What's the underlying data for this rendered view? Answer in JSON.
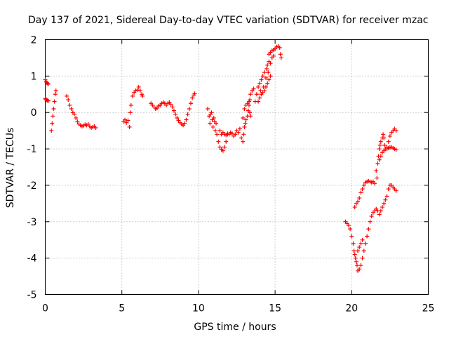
{
  "chart_data": {
    "type": "scatter",
    "title": "Day 137 of 2021, Sidereal Day-to-day VTEC variation (SDTVAR) for receiver mzac",
    "xlabel": "GPS time / hours",
    "ylabel": "SDTVAR / TECUs",
    "xlim": [
      0,
      25
    ],
    "ylim": [
      -5,
      2
    ],
    "xticks": [
      "0",
      "5",
      "10",
      "15",
      "20",
      "25"
    ],
    "yticks": [
      "2",
      "1",
      "0",
      "-1",
      "-2",
      "-3",
      "-4",
      "-5"
    ],
    "grid": true,
    "marker": "plus",
    "color": "#ff0000",
    "series": [
      {
        "points": [
          [
            0.0,
            0.9
          ],
          [
            0.05,
            0.85
          ],
          [
            0.1,
            0.82
          ],
          [
            0.15,
            0.8
          ],
          [
            0.2,
            0.78
          ],
          [
            0.0,
            0.38
          ],
          [
            0.05,
            0.36
          ],
          [
            0.1,
            0.34
          ],
          [
            0.15,
            0.33
          ],
          [
            0.2,
            0.32
          ],
          [
            0.4,
            -0.5
          ],
          [
            0.45,
            -0.3
          ],
          [
            0.5,
            -0.1
          ],
          [
            0.55,
            0.1
          ],
          [
            0.6,
            0.3
          ],
          [
            0.65,
            0.5
          ],
          [
            0.7,
            0.6
          ],
          [
            1.4,
            0.45
          ],
          [
            1.5,
            0.35
          ],
          [
            1.6,
            0.2
          ],
          [
            1.7,
            0.1
          ],
          [
            1.8,
            0.0
          ],
          [
            1.9,
            -0.05
          ],
          [
            2.0,
            -0.15
          ],
          [
            2.1,
            -0.25
          ],
          [
            2.2,
            -0.32
          ],
          [
            2.3,
            -0.35
          ],
          [
            2.4,
            -0.38
          ],
          [
            2.5,
            -0.36
          ],
          [
            2.6,
            -0.33
          ],
          [
            2.7,
            -0.35
          ],
          [
            2.8,
            -0.32
          ],
          [
            2.9,
            -0.38
          ],
          [
            3.0,
            -0.42
          ],
          [
            3.1,
            -0.4
          ],
          [
            3.2,
            -0.38
          ],
          [
            3.3,
            -0.42
          ],
          [
            5.1,
            -0.25
          ],
          [
            5.2,
            -0.2
          ],
          [
            5.3,
            -0.28
          ],
          [
            5.4,
            -0.22
          ],
          [
            5.5,
            -0.4
          ],
          [
            5.55,
            0.0
          ],
          [
            5.6,
            0.2
          ],
          [
            5.7,
            0.45
          ],
          [
            5.8,
            0.55
          ],
          [
            5.9,
            0.6
          ],
          [
            6.0,
            0.62
          ],
          [
            6.1,
            0.7
          ],
          [
            6.2,
            0.6
          ],
          [
            6.3,
            0.5
          ],
          [
            6.35,
            0.45
          ],
          [
            6.9,
            0.25
          ],
          [
            7.0,
            0.2
          ],
          [
            7.1,
            0.15
          ],
          [
            7.2,
            0.1
          ],
          [
            7.3,
            0.12
          ],
          [
            7.4,
            0.18
          ],
          [
            7.5,
            0.2
          ],
          [
            7.6,
            0.25
          ],
          [
            7.7,
            0.28
          ],
          [
            7.8,
            0.25
          ],
          [
            7.9,
            0.2
          ],
          [
            8.0,
            0.25
          ],
          [
            8.1,
            0.28
          ],
          [
            8.2,
            0.22
          ],
          [
            8.3,
            0.15
          ],
          [
            8.4,
            0.05
          ],
          [
            8.5,
            -0.05
          ],
          [
            8.6,
            -0.15
          ],
          [
            8.7,
            -0.22
          ],
          [
            8.8,
            -0.28
          ],
          [
            8.9,
            -0.32
          ],
          [
            9.0,
            -0.35
          ],
          [
            9.1,
            -0.3
          ],
          [
            9.2,
            -0.2
          ],
          [
            9.3,
            -0.05
          ],
          [
            9.4,
            0.1
          ],
          [
            9.5,
            0.25
          ],
          [
            9.6,
            0.4
          ],
          [
            9.7,
            0.48
          ],
          [
            9.75,
            0.52
          ],
          [
            10.6,
            0.1
          ],
          [
            10.7,
            -0.1
          ],
          [
            10.75,
            -0.3
          ],
          [
            10.8,
            -0.05
          ],
          [
            10.85,
            0.0
          ],
          [
            10.9,
            -0.2
          ],
          [
            10.95,
            -0.4
          ],
          [
            11.0,
            -0.15
          ],
          [
            11.05,
            -0.25
          ],
          [
            11.1,
            -0.5
          ],
          [
            11.15,
            -0.3
          ],
          [
            11.2,
            -0.6
          ],
          [
            11.3,
            -0.8
          ],
          [
            11.4,
            -0.95
          ],
          [
            11.5,
            -1.02
          ],
          [
            11.6,
            -1.05
          ],
          [
            11.7,
            -0.95
          ],
          [
            11.8,
            -0.8
          ],
          [
            11.9,
            -0.6
          ],
          [
            11.4,
            -0.5
          ],
          [
            11.5,
            -0.6
          ],
          [
            11.6,
            -0.55
          ],
          [
            11.7,
            -0.6
          ],
          [
            11.8,
            -0.62
          ],
          [
            11.9,
            -0.58
          ],
          [
            12.0,
            -0.6
          ],
          [
            12.1,
            -0.55
          ],
          [
            12.2,
            -0.58
          ],
          [
            12.3,
            -0.65
          ],
          [
            12.4,
            -0.6
          ],
          [
            12.5,
            -0.5
          ],
          [
            12.6,
            -0.55
          ],
          [
            12.7,
            -0.45
          ],
          [
            12.8,
            -0.7
          ],
          [
            12.9,
            -0.8
          ],
          [
            12.95,
            -0.6
          ],
          [
            13.0,
            -0.4
          ],
          [
            13.05,
            -0.3
          ],
          [
            13.1,
            -0.2
          ],
          [
            13.2,
            -0.1
          ],
          [
            13.25,
            0.05
          ],
          [
            13.3,
            0.2
          ],
          [
            13.35,
            0.35
          ],
          [
            13.4,
            0.5
          ],
          [
            13.5,
            0.6
          ],
          [
            13.6,
            0.65
          ],
          [
            12.9,
            -0.15
          ],
          [
            13.0,
            0.1
          ],
          [
            13.1,
            0.2
          ],
          [
            13.2,
            0.25
          ],
          [
            13.3,
            0.3
          ],
          [
            13.35,
            0.0
          ],
          [
            13.4,
            -0.1
          ],
          [
            13.7,
            0.3
          ],
          [
            13.8,
            0.5
          ],
          [
            13.9,
            0.7
          ],
          [
            14.0,
            0.8
          ],
          [
            14.05,
            0.6
          ],
          [
            14.1,
            0.9
          ],
          [
            14.2,
            1.0
          ],
          [
            14.25,
            0.7
          ],
          [
            14.3,
            1.1
          ],
          [
            14.4,
            0.95
          ],
          [
            14.45,
            1.2
          ],
          [
            14.5,
            1.3
          ],
          [
            14.55,
            1.1
          ],
          [
            14.6,
            1.4
          ],
          [
            14.7,
            1.35
          ],
          [
            14.8,
            1.5
          ],
          [
            14.9,
            1.55
          ],
          [
            13.9,
            0.3
          ],
          [
            14.0,
            0.4
          ],
          [
            14.1,
            0.5
          ],
          [
            14.2,
            0.55
          ],
          [
            14.3,
            0.6
          ],
          [
            14.4,
            0.7
          ],
          [
            14.5,
            0.8
          ],
          [
            14.6,
            0.9
          ],
          [
            14.7,
            1.0
          ],
          [
            14.6,
            1.6
          ],
          [
            14.7,
            1.65
          ],
          [
            14.8,
            1.7
          ],
          [
            14.9,
            1.72
          ],
          [
            15.0,
            1.75
          ],
          [
            15.1,
            1.8
          ],
          [
            15.2,
            1.82
          ],
          [
            15.3,
            1.78
          ],
          [
            15.35,
            1.6
          ],
          [
            15.4,
            1.5
          ],
          [
            19.6,
            -3.0
          ],
          [
            19.7,
            -3.05
          ],
          [
            19.8,
            -3.1
          ],
          [
            19.9,
            -3.2
          ],
          [
            20.0,
            -3.4
          ],
          [
            20.1,
            -3.6
          ],
          [
            20.15,
            -3.8
          ],
          [
            20.2,
            -3.9
          ],
          [
            20.25,
            -4.0
          ],
          [
            20.3,
            -4.1
          ],
          [
            20.35,
            -4.2
          ],
          [
            20.4,
            -4.35
          ],
          [
            20.5,
            -4.3
          ],
          [
            20.6,
            -4.2
          ],
          [
            20.7,
            -4.0
          ],
          [
            20.8,
            -3.8
          ],
          [
            20.9,
            -3.6
          ],
          [
            21.0,
            -3.4
          ],
          [
            21.1,
            -3.2
          ],
          [
            21.2,
            -3.0
          ],
          [
            21.3,
            -2.85
          ],
          [
            21.4,
            -2.75
          ],
          [
            21.5,
            -2.7
          ],
          [
            21.6,
            -2.65
          ],
          [
            21.7,
            -2.7
          ],
          [
            21.8,
            -2.8
          ],
          [
            21.9,
            -2.7
          ],
          [
            22.0,
            -2.6
          ],
          [
            22.1,
            -2.5
          ],
          [
            22.2,
            -2.4
          ],
          [
            22.3,
            -2.3
          ],
          [
            22.4,
            -2.1
          ],
          [
            22.5,
            -2.0
          ],
          [
            22.6,
            -2.0
          ],
          [
            22.7,
            -2.05
          ],
          [
            22.8,
            -2.1
          ],
          [
            22.9,
            -2.15
          ],
          [
            20.4,
            -3.8
          ],
          [
            20.5,
            -3.7
          ],
          [
            20.6,
            -3.6
          ],
          [
            20.7,
            -3.5
          ],
          [
            20.2,
            -2.6
          ],
          [
            20.3,
            -2.5
          ],
          [
            20.4,
            -2.45
          ],
          [
            20.5,
            -2.35
          ],
          [
            20.6,
            -2.2
          ],
          [
            20.7,
            -2.1
          ],
          [
            20.8,
            -2.0
          ],
          [
            20.9,
            -1.92
          ],
          [
            21.0,
            -1.9
          ],
          [
            21.1,
            -1.88
          ],
          [
            21.2,
            -1.9
          ],
          [
            21.3,
            -1.92
          ],
          [
            21.4,
            -1.9
          ],
          [
            21.5,
            -1.95
          ],
          [
            21.6,
            -1.6
          ],
          [
            21.65,
            -1.8
          ],
          [
            21.7,
            -1.4
          ],
          [
            21.75,
            -1.2
          ],
          [
            21.8,
            -1.0
          ],
          [
            21.85,
            -0.9
          ],
          [
            21.9,
            -0.8
          ],
          [
            22.0,
            -0.7
          ],
          [
            22.05,
            -0.6
          ],
          [
            22.1,
            -0.7
          ],
          [
            22.15,
            -0.9
          ],
          [
            22.2,
            -1.0
          ],
          [
            22.3,
            -0.95
          ],
          [
            22.4,
            -0.8
          ],
          [
            22.5,
            -0.65
          ],
          [
            22.6,
            -0.55
          ],
          [
            22.7,
            -0.5
          ],
          [
            22.8,
            -0.45
          ],
          [
            22.9,
            -0.5
          ],
          [
            21.8,
            -1.3
          ],
          [
            21.9,
            -1.2
          ],
          [
            22.0,
            -1.1
          ],
          [
            22.1,
            -1.05
          ],
          [
            22.2,
            -1.0
          ],
          [
            22.3,
            -1.0
          ],
          [
            22.4,
            -0.98
          ],
          [
            22.5,
            -0.96
          ],
          [
            22.6,
            -0.95
          ],
          [
            22.7,
            -0.98
          ],
          [
            22.8,
            -1.0
          ],
          [
            22.9,
            -1.02
          ]
        ]
      }
    ]
  }
}
